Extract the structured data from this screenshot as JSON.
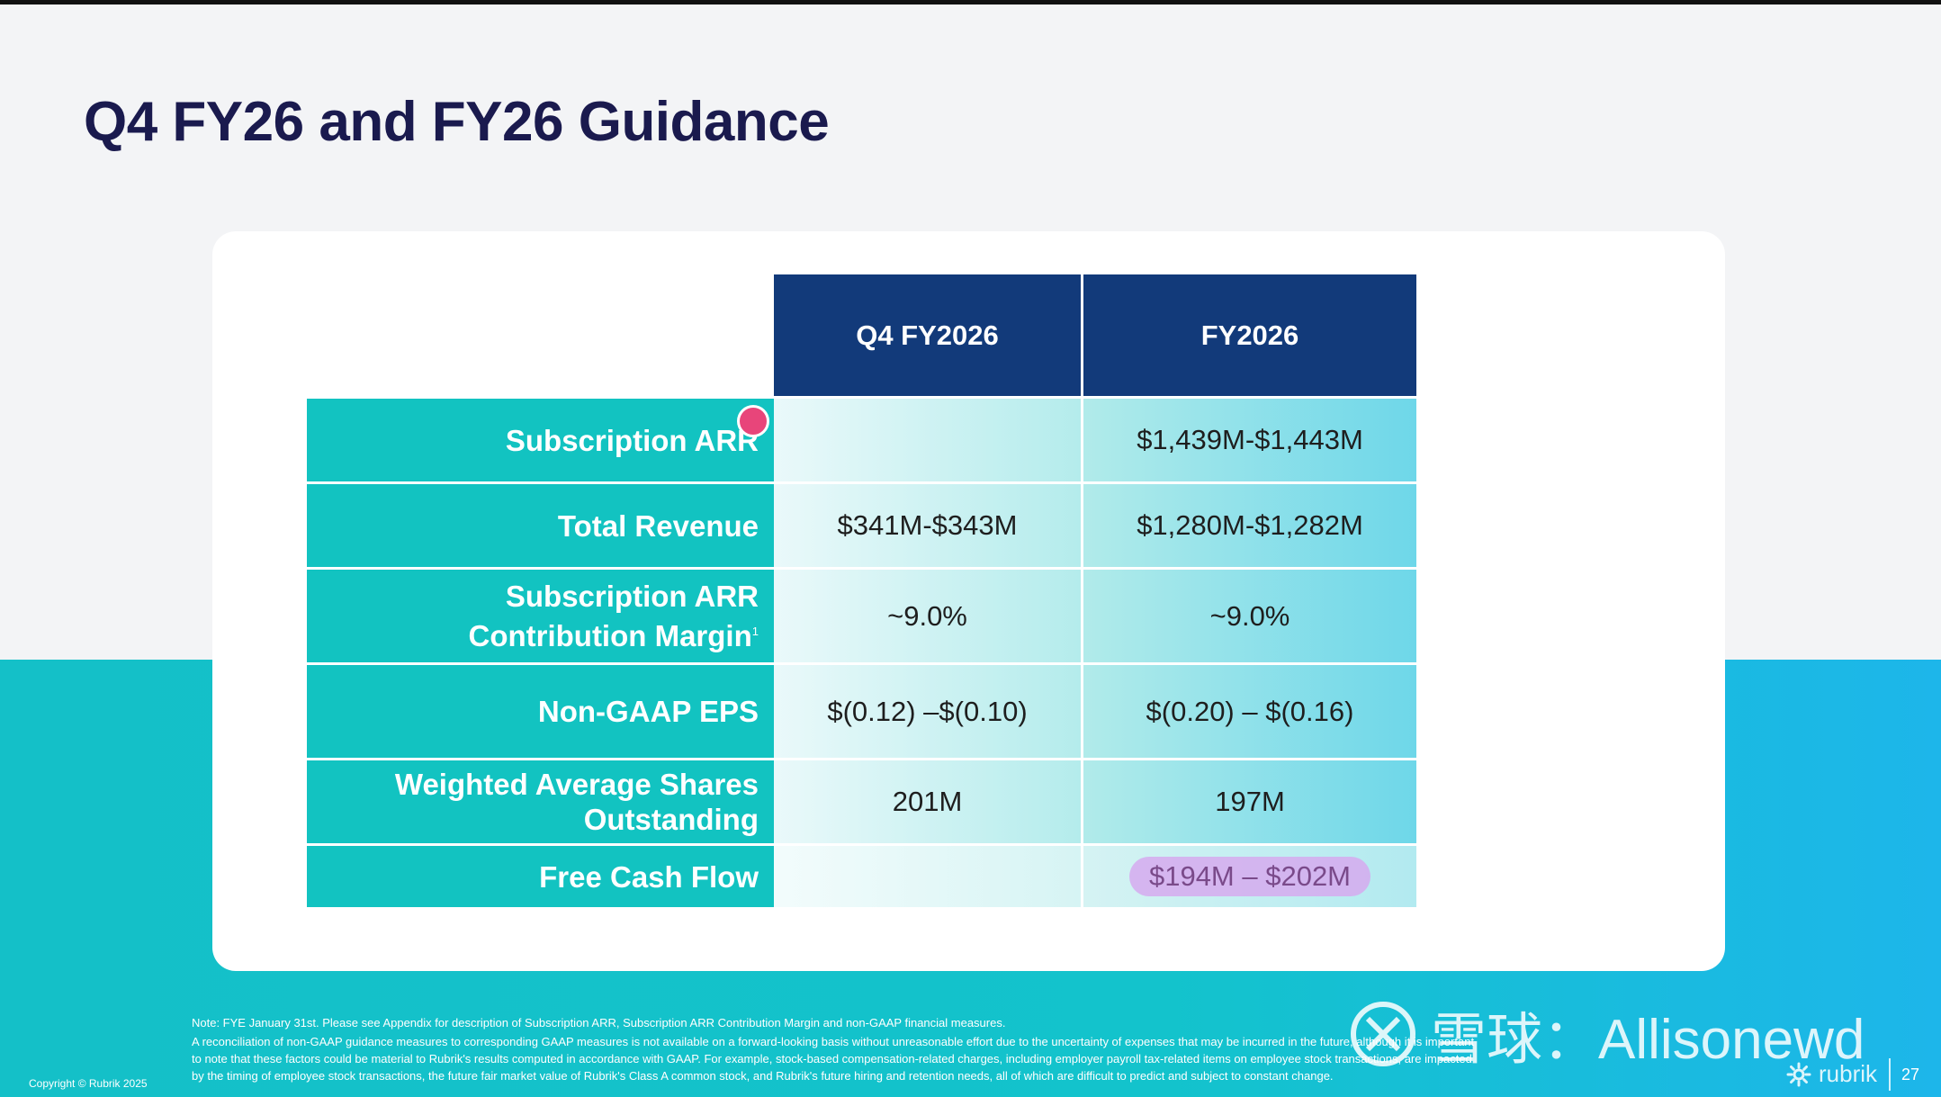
{
  "slide": {
    "title": "Q4 FY26 and FY26 Guidance",
    "page_number": "27",
    "copyright": "Copyright © Rubrik 2025",
    "brand": "rubrik"
  },
  "table": {
    "columns": [
      "Q4 FY2026",
      "FY2026"
    ],
    "rows": [
      {
        "label": "Subscription ARR",
        "q4": "",
        "fy": "$1,439M-$1,443M"
      },
      {
        "label": "Total Revenue",
        "q4": "$341M-$343M",
        "fy": "$1,280M-$1,282M"
      },
      {
        "label_line1": "Subscription ARR",
        "label_line2": "Contribution Margin",
        "footnote": "1",
        "q4": "~9.0%",
        "fy": "~9.0%"
      },
      {
        "label": "Non-GAAP EPS",
        "q4": "$(0.12) –$(0.10)",
        "fy": "$(0.20) – $(0.16)"
      },
      {
        "label_line1": "Weighted Average Shares",
        "label_line2": "Outstanding",
        "q4": "201M",
        "fy": "197M"
      },
      {
        "label": "Free Cash Flow",
        "q4": "",
        "fy": "$194M – $202M"
      }
    ]
  },
  "notes": {
    "line1": "Note: FYE January 31st. Please see Appendix for description of Subscription ARR, Subscription ARR Contribution Margin and non-GAAP financial measures.",
    "line2": "A reconciliation of non-GAAP guidance measures to corresponding GAAP measures is not available on a forward-looking basis without unreasonable effort due to the uncertainty of expenses that may be incurred in the future, although it is important",
    "line3": "to note that these factors could be material to Rubrik's results computed in accordance with GAAP. For example, stock-based compensation-related charges, including employer payroll tax-related items on employee stock transactions, are impacted",
    "line4": "by the timing of employee stock transactions, the future fair market value of Rubrik's Class A common stock, and Rubrik's future hiring and retention needs, all of which are difficult to predict and subject to constant change."
  },
  "watermark": {
    "text": "雪球：Allisonewd"
  },
  "colors": {
    "title": "#1a1a4e",
    "header_navy": "#123a7a",
    "row_label_teal": "#12c3c1",
    "band_teal": "#14c0c8",
    "highlight_purple": "#d6aaee",
    "annotation_pink": "#e8457a"
  }
}
